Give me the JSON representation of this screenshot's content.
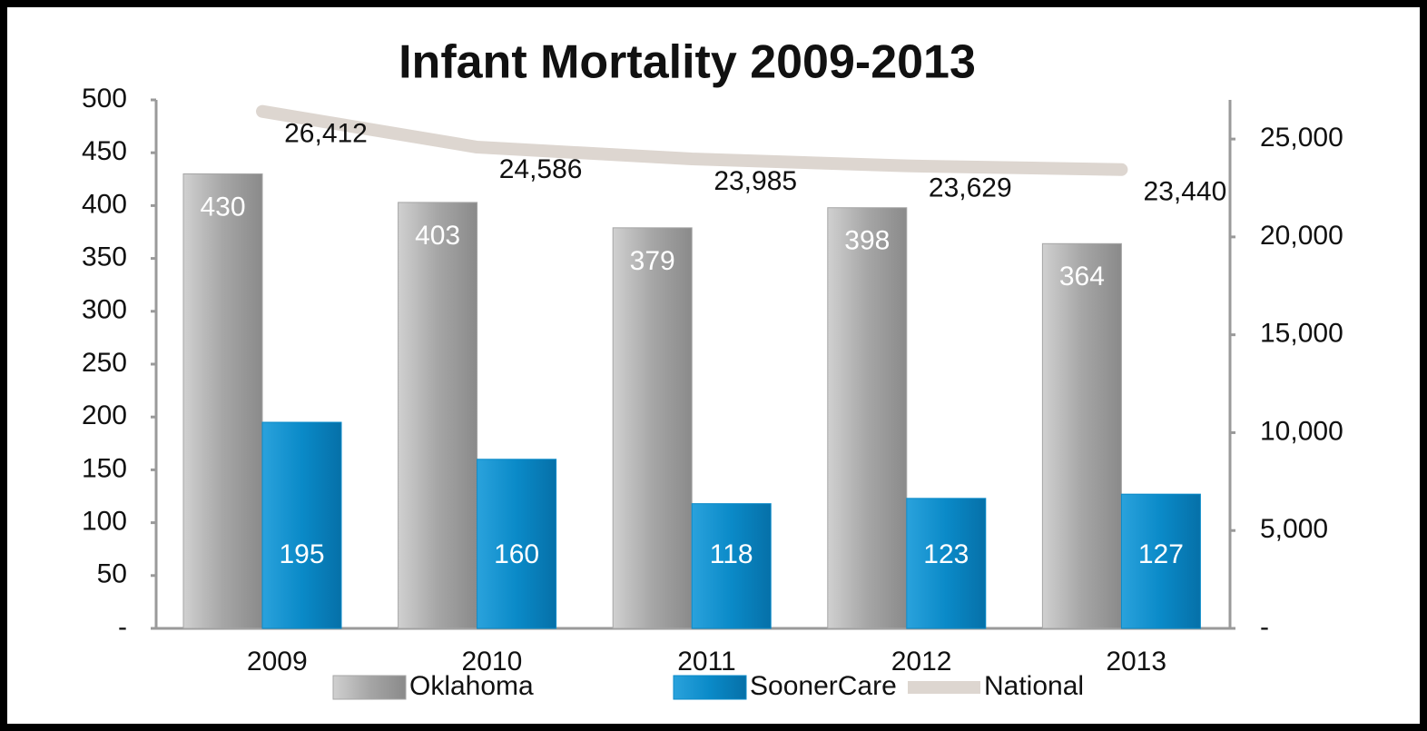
{
  "chart_data": {
    "type": "bar",
    "title": "Infant Mortality 2009-2013",
    "categories": [
      "2009",
      "2010",
      "2011",
      "2012",
      "2013"
    ],
    "series": [
      {
        "name": "Oklahoma",
        "type": "bar",
        "color": "#a6a6a6",
        "values": [
          430,
          403,
          379,
          398,
          364
        ]
      },
      {
        "name": "SoonerCare",
        "type": "bar",
        "color": "#0a8ac8",
        "values": [
          195,
          160,
          118,
          123,
          127
        ]
      },
      {
        "name": "National",
        "type": "line",
        "axis": "y2",
        "color": "#ddd6d0",
        "values": [
          26412,
          24586,
          23985,
          23629,
          23440
        ],
        "value_labels": [
          "26,412",
          "24,586",
          "23,985",
          "23,629",
          "23,440"
        ]
      }
    ],
    "ylim": [
      0,
      500
    ],
    "yticks": [
      {
        "value": 0,
        "label": "-"
      },
      50,
      100,
      150,
      200,
      250,
      300,
      350,
      400,
      450,
      500
    ],
    "y2lim": [
      0,
      27000
    ],
    "y2ticks": [
      {
        "value": 0,
        "label": "-"
      },
      {
        "value": 5000,
        "label": "5,000"
      },
      {
        "value": 10000,
        "label": "10,000"
      },
      {
        "value": 15000,
        "label": "15,000"
      },
      {
        "value": 20000,
        "label": "20,000"
      },
      {
        "value": 25000,
        "label": "25,000"
      }
    ],
    "legend": "bottom"
  }
}
